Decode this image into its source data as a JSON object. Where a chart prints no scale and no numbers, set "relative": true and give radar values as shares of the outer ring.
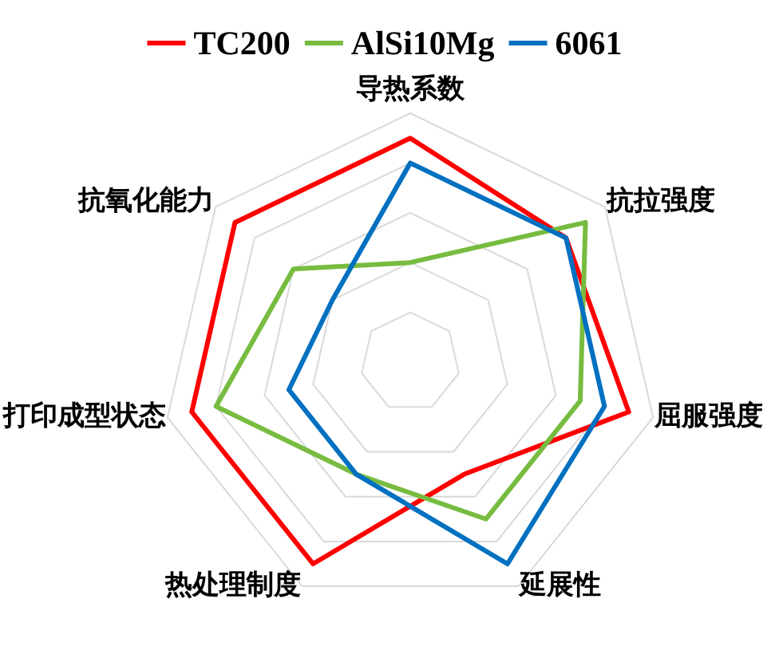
{
  "chart_data": {
    "type": "radar",
    "relative": true,
    "categories": [
      "导热系数",
      "抗拉强度",
      "屈服强度",
      "延展性",
      "热处理制度",
      "打印成型状态",
      "抗氧化能力"
    ],
    "series": [
      {
        "name": "TC200",
        "color": "#ff0000",
        "values": [
          0.9,
          0.8,
          0.9,
          0.5,
          0.9,
          0.9,
          0.9
        ]
      },
      {
        "name": "AlSi10Mg",
        "color": "#77bc40",
        "values": [
          0.4,
          0.9,
          0.7,
          0.7,
          0.5,
          0.8,
          0.6
        ]
      },
      {
        "name": "6061",
        "color": "#0070c0",
        "values": [
          0.8,
          0.8,
          0.8,
          0.9,
          0.5,
          0.5,
          0.4
        ]
      }
    ],
    "legend": "top",
    "grid": true
  }
}
